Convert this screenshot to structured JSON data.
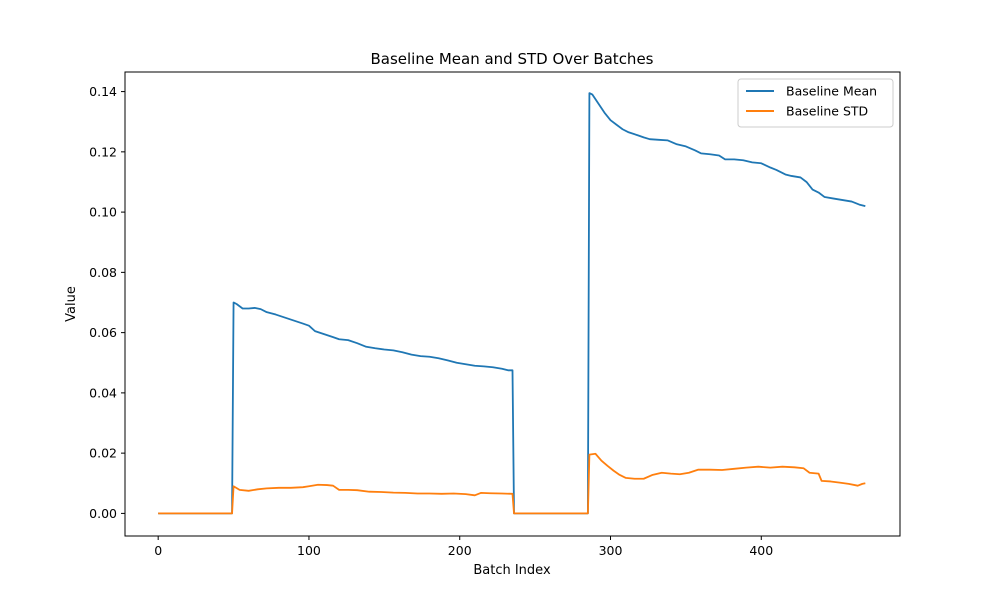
{
  "chart_data": {
    "type": "line",
    "title": "Baseline Mean and STD Over Batches",
    "xlabel": "Batch Index",
    "ylabel": "Value",
    "xlim": [
      -22,
      492
    ],
    "ylim": [
      -0.0075,
      0.1465
    ],
    "xticks": [
      0,
      100,
      200,
      300,
      400
    ],
    "xtick_labels": [
      "0",
      "100",
      "200",
      "300",
      "400"
    ],
    "yticks": [
      0.0,
      0.02,
      0.04,
      0.06,
      0.08,
      0.1,
      0.12,
      0.14
    ],
    "ytick_labels": [
      "0.00",
      "0.02",
      "0.04",
      "0.06",
      "0.08",
      "0.10",
      "0.12",
      "0.14"
    ],
    "grid": false,
    "legend_position": "top-right",
    "series": [
      {
        "name": "Baseline Mean",
        "color": "#1f77b4",
        "points": [
          [
            0,
            0
          ],
          [
            49,
            0
          ],
          [
            50,
            0.07
          ],
          [
            52,
            0.0695
          ],
          [
            56,
            0.068
          ],
          [
            60,
            0.068
          ],
          [
            64,
            0.0682
          ],
          [
            68,
            0.0678
          ],
          [
            72,
            0.0668
          ],
          [
            78,
            0.066
          ],
          [
            84,
            0.065
          ],
          [
            90,
            0.064
          ],
          [
            96,
            0.063
          ],
          [
            100,
            0.0623
          ],
          [
            104,
            0.0605
          ],
          [
            110,
            0.0595
          ],
          [
            116,
            0.0585
          ],
          [
            120,
            0.0578
          ],
          [
            126,
            0.0575
          ],
          [
            132,
            0.0565
          ],
          [
            138,
            0.0553
          ],
          [
            144,
            0.0548
          ],
          [
            150,
            0.0544
          ],
          [
            156,
            0.0541
          ],
          [
            162,
            0.0535
          ],
          [
            168,
            0.0527
          ],
          [
            174,
            0.0522
          ],
          [
            180,
            0.052
          ],
          [
            186,
            0.0515
          ],
          [
            192,
            0.0508
          ],
          [
            198,
            0.05
          ],
          [
            204,
            0.0495
          ],
          [
            210,
            0.049
          ],
          [
            216,
            0.0488
          ],
          [
            222,
            0.0485
          ],
          [
            228,
            0.048
          ],
          [
            232,
            0.0475
          ],
          [
            235,
            0.0475
          ],
          [
            236,
            0
          ],
          [
            285,
            0
          ],
          [
            286,
            0.1395
          ],
          [
            288,
            0.139
          ],
          [
            292,
            0.136
          ],
          [
            296,
            0.133
          ],
          [
            300,
            0.1305
          ],
          [
            304,
            0.129
          ],
          [
            308,
            0.1275
          ],
          [
            312,
            0.1265
          ],
          [
            318,
            0.1255
          ],
          [
            322,
            0.1248
          ],
          [
            326,
            0.1242
          ],
          [
            332,
            0.124
          ],
          [
            338,
            0.1238
          ],
          [
            344,
            0.1225
          ],
          [
            350,
            0.1218
          ],
          [
            356,
            0.1205
          ],
          [
            360,
            0.1195
          ],
          [
            366,
            0.1192
          ],
          [
            372,
            0.1188
          ],
          [
            376,
            0.1175
          ],
          [
            382,
            0.1175
          ],
          [
            388,
            0.1172
          ],
          [
            394,
            0.1165
          ],
          [
            400,
            0.1162
          ],
          [
            406,
            0.1148
          ],
          [
            410,
            0.114
          ],
          [
            416,
            0.1125
          ],
          [
            420,
            0.112
          ],
          [
            426,
            0.1115
          ],
          [
            430,
            0.11
          ],
          [
            434,
            0.1075
          ],
          [
            438,
            0.1065
          ],
          [
            442,
            0.105
          ],
          [
            448,
            0.1045
          ],
          [
            454,
            0.104
          ],
          [
            460,
            0.1035
          ],
          [
            465,
            0.1025
          ],
          [
            469,
            0.102
          ]
        ]
      },
      {
        "name": "Baseline STD",
        "color": "#ff7f0e",
        "points": [
          [
            0,
            0
          ],
          [
            49,
            0
          ],
          [
            50,
            0.009
          ],
          [
            54,
            0.0078
          ],
          [
            60,
            0.0075
          ],
          [
            66,
            0.008
          ],
          [
            72,
            0.0083
          ],
          [
            80,
            0.0085
          ],
          [
            88,
            0.0085
          ],
          [
            96,
            0.0087
          ],
          [
            100,
            0.009
          ],
          [
            106,
            0.0095
          ],
          [
            112,
            0.0094
          ],
          [
            116,
            0.0092
          ],
          [
            120,
            0.0078
          ],
          [
            126,
            0.0078
          ],
          [
            132,
            0.0077
          ],
          [
            140,
            0.0072
          ],
          [
            148,
            0.0071
          ],
          [
            156,
            0.0069
          ],
          [
            164,
            0.0068
          ],
          [
            172,
            0.0066
          ],
          [
            180,
            0.0066
          ],
          [
            188,
            0.0065
          ],
          [
            196,
            0.0066
          ],
          [
            204,
            0.0064
          ],
          [
            210,
            0.006
          ],
          [
            214,
            0.0068
          ],
          [
            220,
            0.0067
          ],
          [
            228,
            0.0066
          ],
          [
            235,
            0.0065
          ],
          [
            236,
            0
          ],
          [
            285,
            0
          ],
          [
            286,
            0.0195
          ],
          [
            290,
            0.0198
          ],
          [
            294,
            0.0175
          ],
          [
            298,
            0.0158
          ],
          [
            302,
            0.0142
          ],
          [
            306,
            0.0128
          ],
          [
            310,
            0.0118
          ],
          [
            316,
            0.0115
          ],
          [
            322,
            0.0115
          ],
          [
            328,
            0.0128
          ],
          [
            334,
            0.0135
          ],
          [
            340,
            0.0132
          ],
          [
            346,
            0.013
          ],
          [
            352,
            0.0135
          ],
          [
            358,
            0.0145
          ],
          [
            366,
            0.0145
          ],
          [
            374,
            0.0144
          ],
          [
            382,
            0.0148
          ],
          [
            390,
            0.0152
          ],
          [
            398,
            0.0155
          ],
          [
            406,
            0.0152
          ],
          [
            414,
            0.0155
          ],
          [
            422,
            0.0153
          ],
          [
            428,
            0.015
          ],
          [
            432,
            0.0135
          ],
          [
            438,
            0.0132
          ],
          [
            440,
            0.0108
          ],
          [
            446,
            0.0106
          ],
          [
            452,
            0.0102
          ],
          [
            458,
            0.0098
          ],
          [
            464,
            0.0092
          ],
          [
            467,
            0.0098
          ],
          [
            469,
            0.01
          ]
        ]
      }
    ]
  }
}
